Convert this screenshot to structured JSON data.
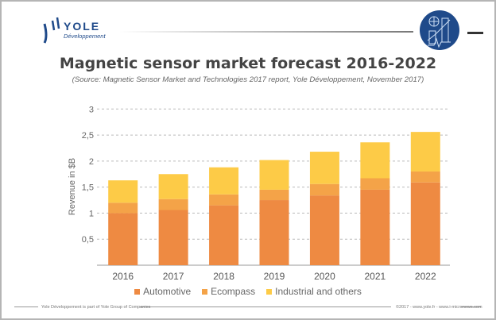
{
  "brand": {
    "logo_text": "YOLE",
    "logo_sub": "Développement"
  },
  "title": "Magnetic sensor market forecast 2016-2022",
  "subtitle": "(Source: Magnetic Sensor Market and Technologies 2017 report, Yole Développement, November 2017)",
  "footer": {
    "left": "Yole Développement is part of Yole Group of Companies",
    "right": "©2017 - www.yole.fr - www.i-micronews.com"
  },
  "chart_data": {
    "type": "bar",
    "stacked": true,
    "title": "Magnetic sensor market forecast 2016-2022",
    "xlabel": "",
    "ylabel": "Revenue in $B",
    "ylim": [
      0,
      3
    ],
    "yticks": [
      "0,5",
      "1",
      "1,5",
      "2",
      "2,5",
      "3"
    ],
    "ytick_values": [
      0.5,
      1,
      1.5,
      2,
      2.5,
      3
    ],
    "grid": true,
    "legend": "bottom",
    "categories": [
      "2016",
      "2017",
      "2018",
      "2019",
      "2020",
      "2021",
      "2022"
    ],
    "series": [
      {
        "name": "Automotive",
        "color": "#EE8A42",
        "values": [
          1.0,
          1.06,
          1.15,
          1.25,
          1.34,
          1.45,
          1.59
        ]
      },
      {
        "name": "Ecompass",
        "color": "#F4A348",
        "values": [
          0.2,
          0.21,
          0.21,
          0.2,
          0.22,
          0.22,
          0.21
        ]
      },
      {
        "name": "Industrial and others",
        "color": "#FDCB47",
        "values": [
          0.43,
          0.48,
          0.52,
          0.57,
          0.62,
          0.69,
          0.76
        ]
      }
    ]
  }
}
